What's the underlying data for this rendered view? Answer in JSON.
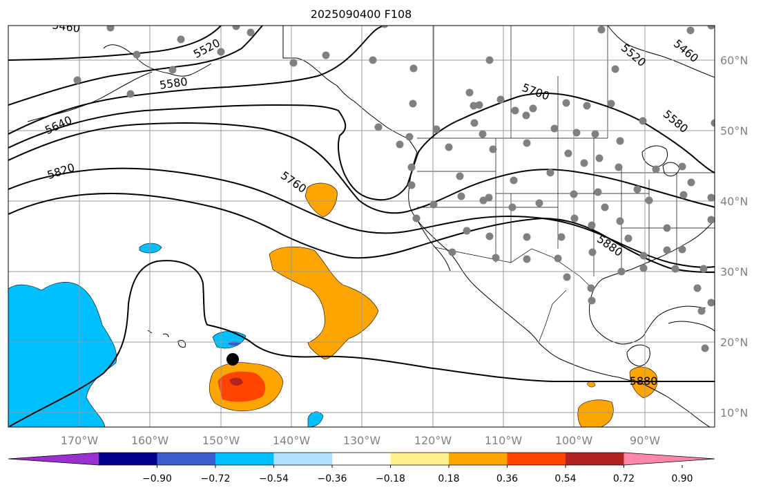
{
  "title": "2025090400 F108",
  "longitude_ticks": [
    "170°W",
    "160°W",
    "150°W",
    "140°W",
    "130°W",
    "120°W",
    "110°W",
    "100°W",
    "90°W"
  ],
  "latitude_ticks": [
    "60°N",
    "50°N",
    "40°N",
    "30°N",
    "20°N",
    "10°N"
  ],
  "contour_labels": [
    "5460",
    "5520",
    "5580",
    "5640",
    "5820",
    "5760",
    "5700",
    "5520",
    "5460",
    "5580",
    "5880",
    "5880"
  ],
  "colorbar": {
    "ticks": [
      "−0.90",
      "−0.72",
      "−0.54",
      "−0.36",
      "−0.18",
      "0.18",
      "0.36",
      "0.54",
      "0.72",
      "0.90"
    ],
    "colors": [
      "#9b30d0",
      "#00008b",
      "#3a5fcd",
      "#00bfff",
      "#b0e2ff",
      "#ffffff",
      "#fff08c",
      "#ffa500",
      "#ff4500",
      "#b22222",
      "#ff88aa"
    ]
  },
  "colors": {
    "positive_anomaly": "#ffa500",
    "strong_positive": "#ff4500",
    "peak_positive": "#b22222",
    "negative_anomaly": "#00bfff",
    "strong_negative": "#3a5fcd",
    "station_marker": "#808080",
    "storm_marker": "#000000"
  }
}
